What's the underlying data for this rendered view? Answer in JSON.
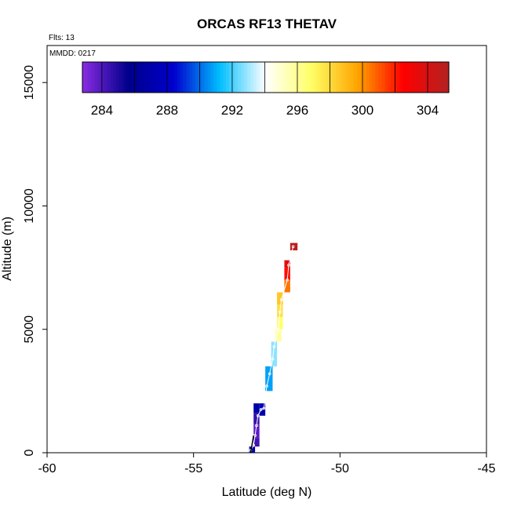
{
  "chart_data": {
    "type": "heatmap",
    "title": "ORCAS RF13 THETAV",
    "flights_note": "Flts: 13",
    "date_note": "MMDD: 0217",
    "xlabel": "Latitude (deg N)",
    "ylabel": "Altitude (m)",
    "xlim": [
      -60,
      -45
    ],
    "ylim": [
      0,
      16500
    ],
    "x_ticks": [
      -60,
      -55,
      -50,
      -45
    ],
    "y_ticks": [
      0,
      5000,
      10000,
      15000
    ],
    "grid": false,
    "colorbar": {
      "placement": "top",
      "range": [
        282.8,
        305.3
      ],
      "ticks": [
        284,
        288,
        292,
        296,
        300,
        304
      ],
      "stops": [
        "#8a2be2",
        "#00008b",
        "#0000cd",
        "#00bfff",
        "#ffffff",
        "#ffff66",
        "#ffa500",
        "#ff0000",
        "#b22222"
      ]
    },
    "cells": [
      {
        "lat": -53.1,
        "lat2": -52.9,
        "alt": 0,
        "alt2": 250,
        "value": 286.5
      },
      {
        "lat": -52.95,
        "lat2": -52.75,
        "alt": 250,
        "alt2": 600,
        "value": 284.3
      },
      {
        "lat": -52.95,
        "lat2": -52.75,
        "alt": 600,
        "alt2": 1150,
        "value": 283.7
      },
      {
        "lat": -52.95,
        "lat2": -52.75,
        "alt": 1150,
        "alt2": 1600,
        "value": 284.5
      },
      {
        "lat": -52.95,
        "lat2": -52.75,
        "alt": 1600,
        "alt2": 2000,
        "value": 286.8
      },
      {
        "lat": -52.75,
        "lat2": -52.55,
        "alt": 1500,
        "alt2": 2000,
        "value": 287.2
      },
      {
        "lat": -52.55,
        "lat2": -52.3,
        "alt": 2500,
        "alt2": 3500,
        "value": 290.8
      },
      {
        "lat": -52.35,
        "lat2": -52.15,
        "alt": 3500,
        "alt2": 4500,
        "value": 292.8
      },
      {
        "lat": -52.35,
        "lat2": -52.15,
        "alt": 4500,
        "alt2": 5000,
        "value": 294.2
      },
      {
        "lat": -52.2,
        "lat2": -52.0,
        "alt": 4500,
        "alt2": 5000,
        "value": 295.8
      },
      {
        "lat": -52.15,
        "lat2": -51.95,
        "alt": 5000,
        "alt2": 5500,
        "value": 296.7
      },
      {
        "lat": -52.15,
        "lat2": -51.95,
        "alt": 5500,
        "alt2": 6000,
        "value": 297.8
      },
      {
        "lat": -52.15,
        "lat2": -51.95,
        "alt": 6000,
        "alt2": 6500,
        "value": 298.6
      },
      {
        "lat": -51.9,
        "lat2": -51.7,
        "alt": 6500,
        "alt2": 7000,
        "value": 300.5
      },
      {
        "lat": -51.9,
        "lat2": -51.7,
        "alt": 7000,
        "alt2": 7500,
        "value": 302.3
      },
      {
        "lat": -51.9,
        "lat2": -51.7,
        "alt": 7500,
        "alt2": 7800,
        "value": 303.5
      },
      {
        "lat": -51.7,
        "lat2": -51.45,
        "alt": 8200,
        "alt2": 8500,
        "value": 305.0
      }
    ],
    "track": [
      {
        "lat": -53.05,
        "alt": 100
      },
      {
        "lat": -52.95,
        "alt": 300
      },
      {
        "lat": -52.9,
        "alt": 700
      },
      {
        "lat": -52.85,
        "alt": 1100
      },
      {
        "lat": -52.8,
        "alt": 1500
      },
      {
        "lat": -52.7,
        "alt": 1750
      },
      {
        "lat": -52.6,
        "alt": 1800
      },
      {
        "lat": -52.55,
        "alt": 2200
      },
      {
        "lat": -52.5,
        "alt": 2700
      },
      {
        "lat": -52.4,
        "alt": 3200
      },
      {
        "lat": -52.3,
        "alt": 3800
      },
      {
        "lat": -52.25,
        "alt": 4300
      },
      {
        "lat": -52.1,
        "alt": 5000
      },
      {
        "lat": -52.05,
        "alt": 5700
      },
      {
        "lat": -52.0,
        "alt": 6200
      },
      {
        "lat": -51.8,
        "alt": 7000
      },
      {
        "lat": -51.75,
        "alt": 7600
      },
      {
        "lat": -51.6,
        "alt": 8350
      }
    ]
  }
}
